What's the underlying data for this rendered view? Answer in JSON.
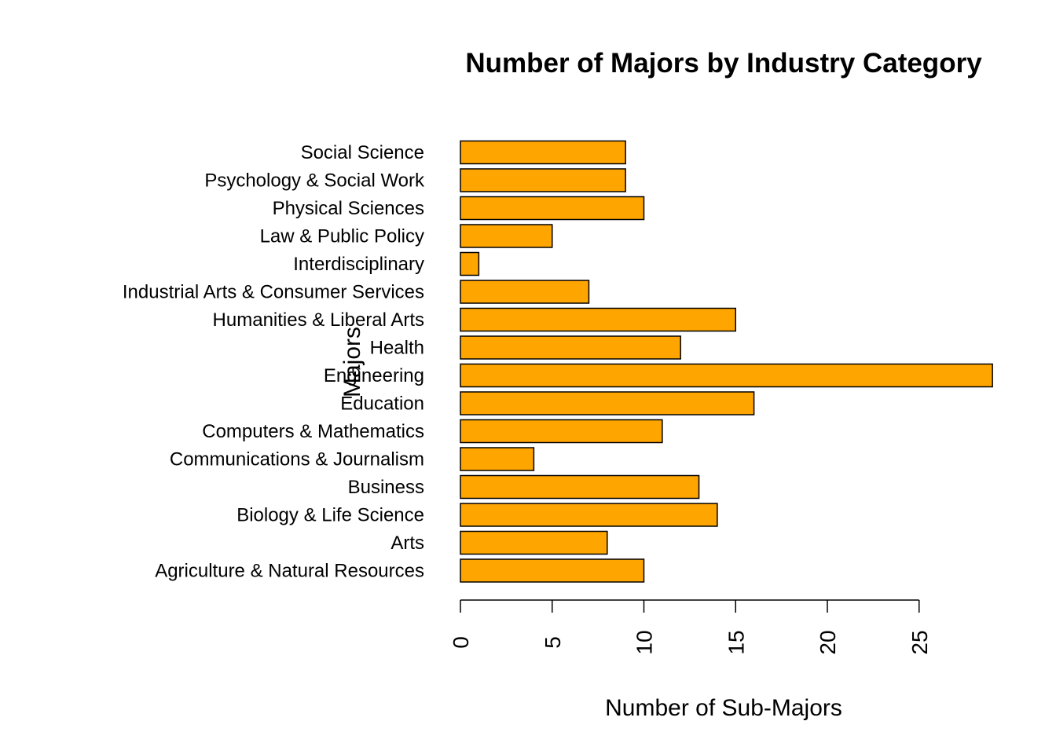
{
  "chart_data": {
    "type": "bar",
    "orientation": "horizontal",
    "title": "Number of Majors by Industry Category",
    "xlabel": "Number of Sub-Majors",
    "ylabel": "Majors",
    "bar_color": "#FFA500",
    "xlim": [
      0,
      29
    ],
    "x_ticks": [
      0,
      5,
      10,
      15,
      20,
      25
    ],
    "categories": [
      "Agriculture & Natural Resources",
      "Arts",
      "Biology & Life Science",
      "Business",
      "Communications & Journalism",
      "Computers & Mathematics",
      "Education",
      "Engineering",
      "Health",
      "Humanities & Liberal Arts",
      "Industrial Arts & Consumer Services",
      "Interdisciplinary",
      "Law & Public Policy",
      "Physical Sciences",
      "Psychology & Social Work",
      "Social Science"
    ],
    "values": [
      10,
      8,
      14,
      13,
      4,
      11,
      16,
      29,
      12,
      15,
      7,
      1,
      5,
      10,
      9,
      9
    ]
  }
}
